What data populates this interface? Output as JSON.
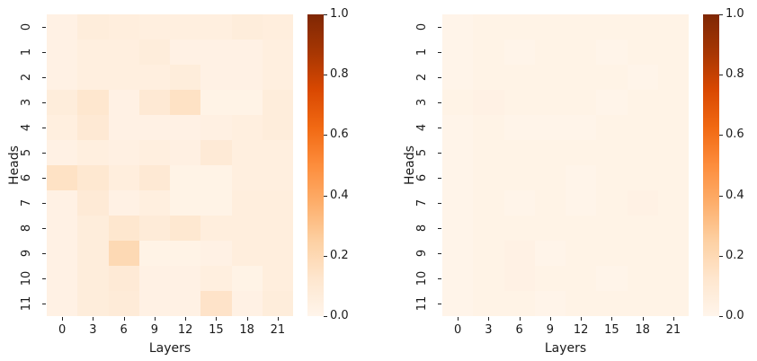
{
  "chart_data": [
    {
      "type": "heatmap",
      "title": "",
      "xlabel": "Layers",
      "ylabel": "Heads",
      "x_tick_labels": [
        "0",
        "3",
        "6",
        "9",
        "12",
        "15",
        "18",
        "21"
      ],
      "y_tick_labels": [
        "0",
        "1",
        "2",
        "3",
        "4",
        "5",
        "6",
        "7",
        "8",
        "9",
        "10",
        "11"
      ],
      "colormap": "Oranges",
      "vmin": 0.0,
      "vmax": 1.0,
      "colorbar_ticks": [
        "0.0",
        "0.2",
        "0.4",
        "0.6",
        "0.8",
        "1.0"
      ],
      "grid": false,
      "values": [
        [
          0.03,
          0.07,
          0.06,
          0.05,
          0.05,
          0.05,
          0.07,
          0.06
        ],
        [
          0.03,
          0.05,
          0.05,
          0.07,
          0.03,
          0.03,
          0.03,
          0.05
        ],
        [
          0.03,
          0.05,
          0.05,
          0.05,
          0.07,
          0.03,
          0.03,
          0.05
        ],
        [
          0.07,
          0.12,
          0.03,
          0.1,
          0.15,
          0.02,
          0.02,
          0.07
        ],
        [
          0.05,
          0.1,
          0.03,
          0.03,
          0.03,
          0.04,
          0.05,
          0.07
        ],
        [
          0.03,
          0.05,
          0.04,
          0.05,
          0.04,
          0.09,
          0.05,
          0.05
        ],
        [
          0.15,
          0.11,
          0.06,
          0.1,
          0.02,
          0.02,
          0.05,
          0.05
        ],
        [
          0.03,
          0.09,
          0.03,
          0.05,
          0.02,
          0.02,
          0.06,
          0.06
        ],
        [
          0.03,
          0.07,
          0.12,
          0.08,
          0.11,
          0.06,
          0.06,
          0.06
        ],
        [
          0.03,
          0.07,
          0.2,
          0.02,
          0.02,
          0.03,
          0.06,
          0.06
        ],
        [
          0.03,
          0.07,
          0.09,
          0.03,
          0.03,
          0.05,
          0.02,
          0.06
        ],
        [
          0.03,
          0.07,
          0.08,
          0.03,
          0.03,
          0.14,
          0.03,
          0.07
        ]
      ]
    },
    {
      "type": "heatmap",
      "title": "",
      "xlabel": "Layers",
      "ylabel": "Heads",
      "x_tick_labels": [
        "0",
        "3",
        "6",
        "9",
        "12",
        "15",
        "18",
        "21"
      ],
      "y_tick_labels": [
        "0",
        "1",
        "2",
        "3",
        "4",
        "5",
        "6",
        "7",
        "8",
        "9",
        "10",
        "11"
      ],
      "colormap": "Oranges",
      "vmin": 0.0,
      "vmax": 1.0,
      "colorbar_ticks": [
        "0.0",
        "0.2",
        "0.4",
        "0.6",
        "0.8",
        "1.0"
      ],
      "grid": false,
      "values": [
        [
          0.01,
          0.02,
          0.02,
          0.02,
          0.02,
          0.02,
          0.02,
          0.02
        ],
        [
          0.01,
          0.02,
          0.01,
          0.02,
          0.02,
          0.01,
          0.02,
          0.02
        ],
        [
          0.01,
          0.02,
          0.02,
          0.02,
          0.02,
          0.02,
          0.01,
          0.02
        ],
        [
          0.02,
          0.03,
          0.02,
          0.02,
          0.02,
          0.01,
          0.02,
          0.02
        ],
        [
          0.01,
          0.02,
          0.01,
          0.01,
          0.01,
          0.02,
          0.02,
          0.02
        ],
        [
          0.01,
          0.02,
          0.02,
          0.02,
          0.02,
          0.02,
          0.02,
          0.02
        ],
        [
          0.01,
          0.02,
          0.02,
          0.02,
          0.01,
          0.02,
          0.02,
          0.02
        ],
        [
          0.01,
          0.02,
          0.01,
          0.02,
          0.01,
          0.02,
          0.03,
          0.02
        ],
        [
          0.01,
          0.02,
          0.02,
          0.02,
          0.02,
          0.02,
          0.02,
          0.02
        ],
        [
          0.01,
          0.02,
          0.03,
          0.01,
          0.02,
          0.02,
          0.02,
          0.02
        ],
        [
          0.01,
          0.02,
          0.03,
          0.02,
          0.02,
          0.01,
          0.02,
          0.02
        ],
        [
          0.01,
          0.02,
          0.02,
          0.01,
          0.02,
          0.02,
          0.02,
          0.02
        ]
      ]
    }
  ],
  "colors": {
    "cmap_stops": [
      "#fff5eb",
      "#fee6ce",
      "#fdd0a2",
      "#fdae6b",
      "#fd8d3c",
      "#f16913",
      "#d94801",
      "#a63603",
      "#7f2704"
    ]
  }
}
